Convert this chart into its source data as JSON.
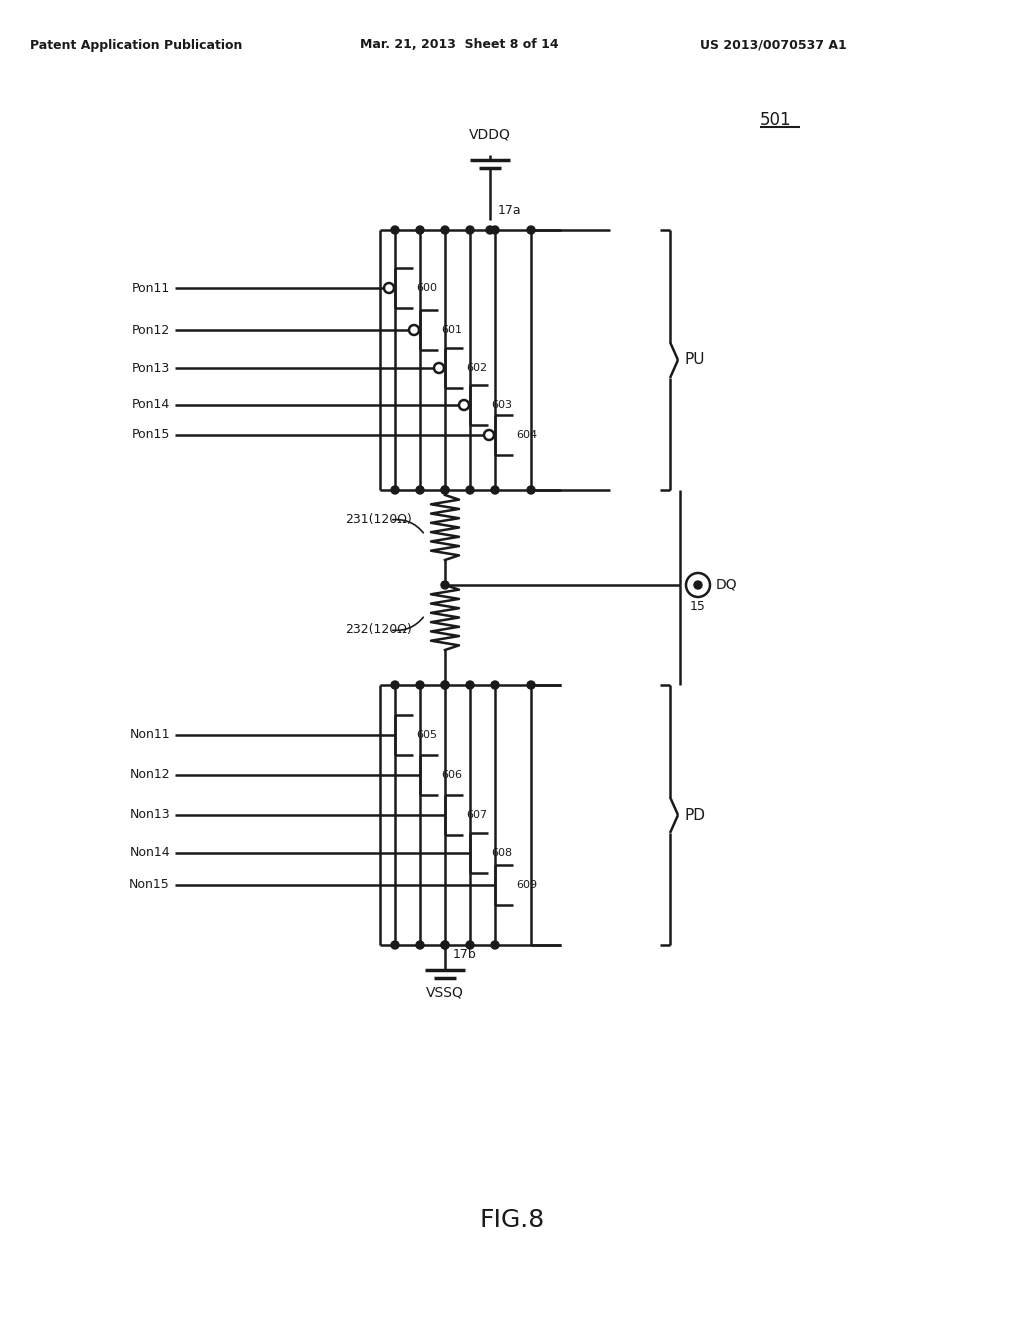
{
  "title_left": "Patent Application Publication",
  "title_center": "Mar. 21, 2013  Sheet 8 of 14",
  "title_right": "US 2013/0070537 A1",
  "fig_label": "FIG.8",
  "circuit_label": "501",
  "vddq_label": "VDDQ",
  "vssq_label": "VSSQ",
  "node_17a": "17a",
  "node_17b": "17b",
  "dq_label": "DQ",
  "dq_node": "15",
  "pu_label": "PU",
  "pd_label": "PD",
  "res1_label": "231(120Ω)",
  "res2_label": "232(120Ω)",
  "pu_transistors": [
    "600",
    "601",
    "602",
    "603",
    "604"
  ],
  "pd_transistors": [
    "605",
    "606",
    "607",
    "608",
    "609"
  ],
  "pu_inputs": [
    "Pon11",
    "Pon12",
    "Pon13",
    "Pon14",
    "Pon15"
  ],
  "pd_inputs": [
    "Non11",
    "Non12",
    "Non13",
    "Non14",
    "Non15"
  ],
  "bg_color": "#ffffff",
  "line_color": "#1a1a1a",
  "header_fontsize": 9,
  "label_fontsize": 9,
  "title_fontsize": 14
}
